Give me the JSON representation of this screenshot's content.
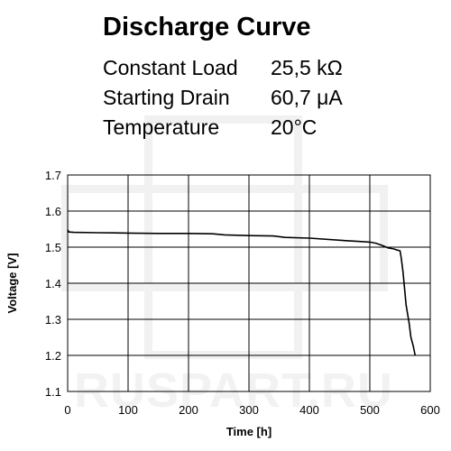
{
  "header": {
    "title": "Discharge Curve",
    "params": [
      {
        "label": "Constant Load",
        "value": "25,5 kΩ"
      },
      {
        "label": "Starting Drain",
        "value": "60,7 μA"
      },
      {
        "label": "Temperature",
        "value": "20°C"
      }
    ]
  },
  "watermark": "RUSPART.RU",
  "chart_data": {
    "type": "line",
    "title": "Discharge Curve",
    "xlabel": "Time [h]",
    "ylabel": "Voltage [V]",
    "xlim": [
      0,
      600
    ],
    "ylim": [
      1.1,
      1.7
    ],
    "xticks": [
      "0",
      "100",
      "200",
      "300",
      "400",
      "500",
      "600"
    ],
    "yticks": [
      "1.1",
      "1.2",
      "1.3",
      "1.4",
      "1.5",
      "1.6",
      "1.7"
    ],
    "grid": true,
    "series": [
      {
        "x": [
          0,
          2,
          10,
          50,
          100,
          150,
          200,
          240,
          260,
          300,
          340,
          360,
          400,
          460,
          480,
          500,
          510,
          520,
          530,
          540,
          545,
          550,
          552,
          555,
          560,
          565,
          568,
          572,
          575
        ],
        "y": [
          1.548,
          1.542,
          1.541,
          1.54,
          1.539,
          1.538,
          1.538,
          1.537,
          1.534,
          1.532,
          1.531,
          1.527,
          1.525,
          1.518,
          1.516,
          1.514,
          1.511,
          1.505,
          1.498,
          1.495,
          1.492,
          1.49,
          1.47,
          1.43,
          1.34,
          1.29,
          1.25,
          1.225,
          1.2
        ]
      }
    ]
  }
}
